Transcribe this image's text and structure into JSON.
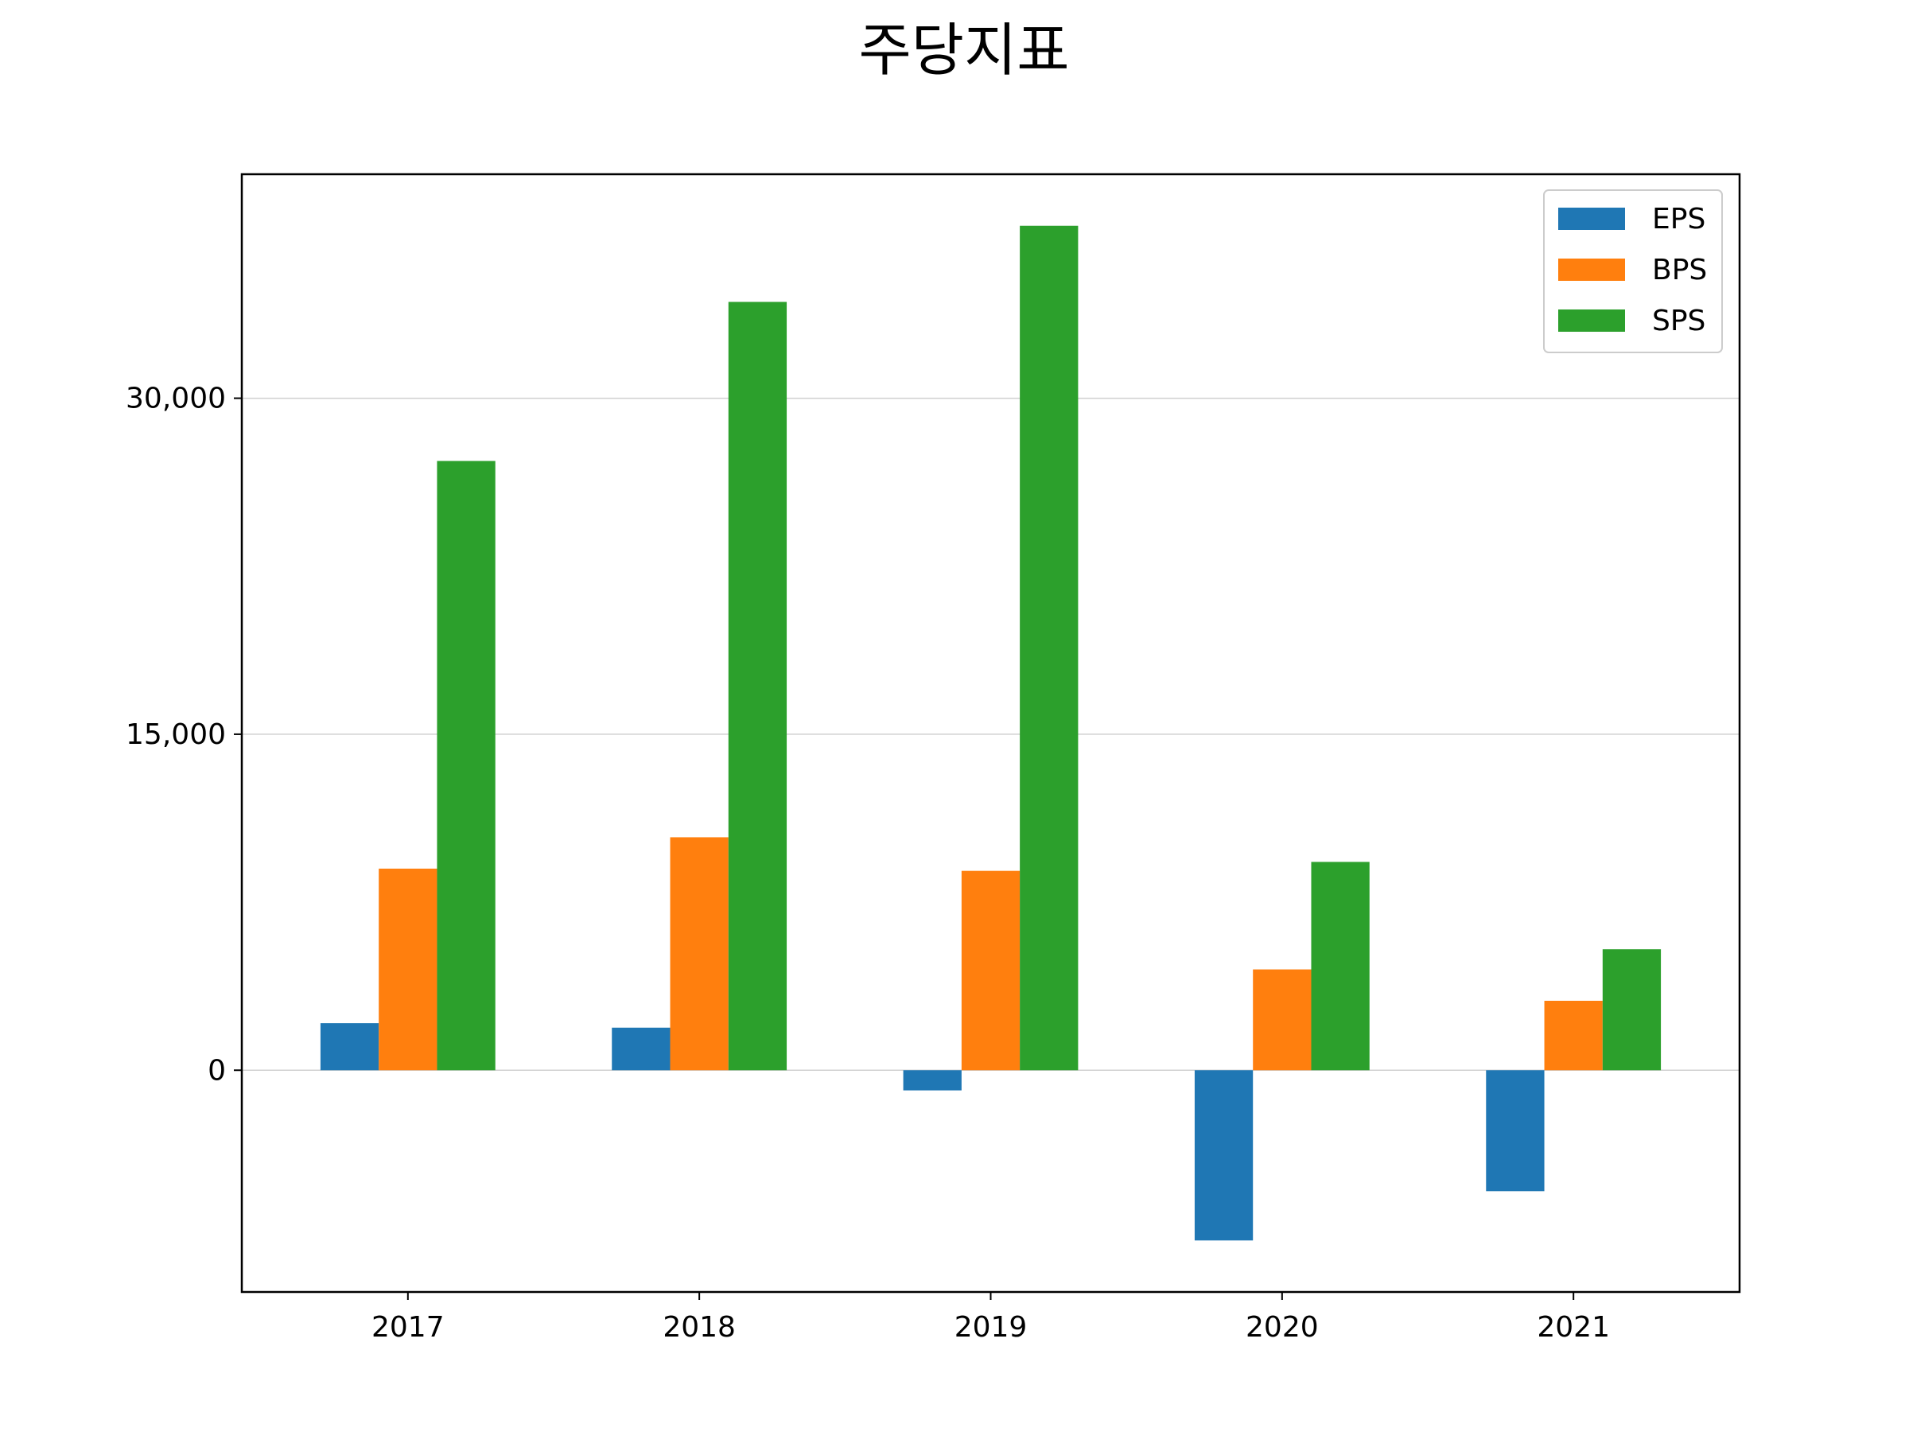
{
  "chart_data": {
    "type": "bar",
    "title": "주당지표",
    "xlabel": "",
    "ylabel": "",
    "categories": [
      "2017",
      "2018",
      "2019",
      "2020",
      "2021"
    ],
    "series": [
      {
        "name": "EPS",
        "color": "#1f77b4",
        "values": [
          2100,
          1900,
          -900,
          -7600,
          -5400
        ]
      },
      {
        "name": "BPS",
        "color": "#ff7f0e",
        "values": [
          9000,
          10400,
          8900,
          4500,
          3100
        ]
      },
      {
        "name": "SPS",
        "color": "#2ca02c",
        "values": [
          27200,
          34300,
          37700,
          9300,
          5400
        ]
      }
    ],
    "ylim": [
      -9900,
      40000
    ],
    "yticks": [
      0,
      15000,
      30000
    ],
    "ytick_labels": [
      "0",
      "15,000",
      "30,000"
    ],
    "grid": "horizontal",
    "legend_position": "upper right"
  }
}
